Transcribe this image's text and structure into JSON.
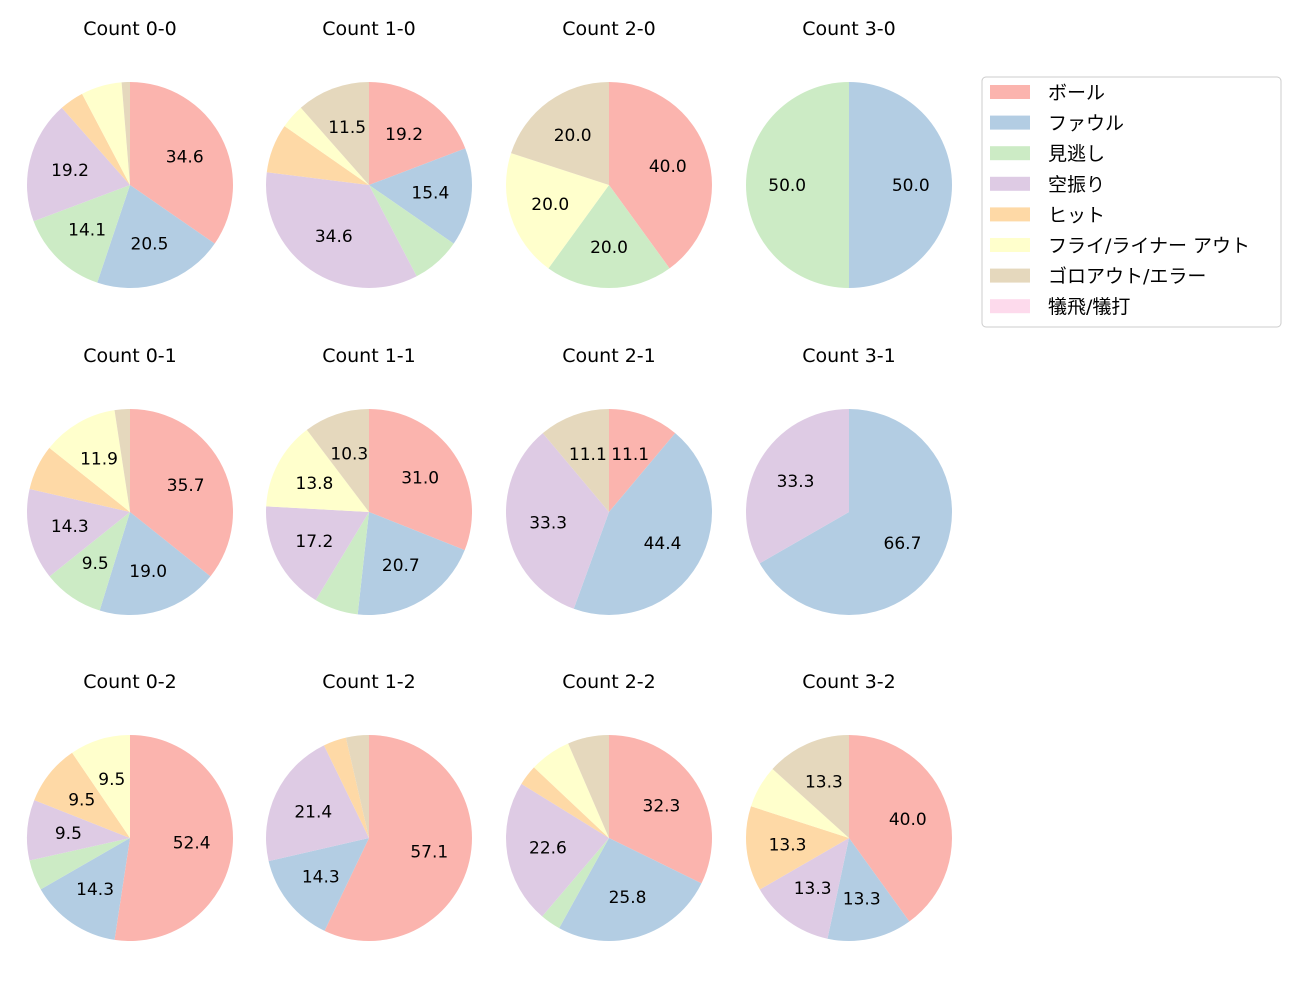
{
  "chart_data": {
    "type": "pie",
    "start": "top",
    "direction": "clockwise",
    "legend": {
      "placement": "top-right",
      "entries": [
        "ボール",
        "ファウル",
        "見逃し",
        "空振り",
        "ヒット",
        "フライ/ライナー アウト",
        "ゴロアウト/エラー",
        "犠飛/犠打"
      ]
    },
    "colors": [
      "#fbb4ae",
      "#b3cde3",
      "#ccebc5",
      "#decbe4",
      "#fed9a6",
      "#ffffcc",
      "#e5d8bd",
      "#fddaec"
    ],
    "charts": [
      {
        "title": "Count 0-0",
        "values": [
          34.6,
          20.5,
          14.1,
          19.2,
          3.8,
          6.4,
          1.3,
          0
        ]
      },
      {
        "title": "Count 1-0",
        "values": [
          19.2,
          15.4,
          7.7,
          34.6,
          7.7,
          3.8,
          11.5,
          0
        ]
      },
      {
        "title": "Count 2-0",
        "values": [
          40.0,
          0,
          20.0,
          0,
          0,
          20.0,
          20.0,
          0
        ]
      },
      {
        "title": "Count 3-0",
        "values": [
          0,
          50.0,
          50.0,
          0,
          0,
          0,
          0,
          0
        ]
      },
      {
        "title": "Count 0-1",
        "values": [
          35.7,
          19.0,
          9.5,
          14.3,
          7.1,
          11.9,
          2.4,
          0
        ]
      },
      {
        "title": "Count 1-1",
        "values": [
          31.0,
          20.7,
          6.9,
          17.2,
          0,
          13.8,
          10.3,
          0
        ]
      },
      {
        "title": "Count 2-1",
        "values": [
          11.1,
          44.4,
          0,
          33.3,
          0,
          0,
          11.1,
          0
        ]
      },
      {
        "title": "Count 3-1",
        "values": [
          0,
          66.7,
          0,
          33.3,
          0,
          0,
          0,
          0
        ]
      },
      {
        "title": "Count 0-2",
        "values": [
          52.4,
          14.3,
          4.8,
          9.5,
          9.5,
          9.5,
          0,
          0
        ]
      },
      {
        "title": "Count 1-2",
        "values": [
          57.1,
          14.3,
          0,
          21.4,
          3.6,
          0,
          3.6,
          0
        ]
      },
      {
        "title": "Count 2-2",
        "values": [
          32.3,
          25.8,
          3.2,
          22.6,
          3.2,
          6.5,
          6.5,
          0
        ]
      },
      {
        "title": "Count 3-2",
        "values": [
          40.0,
          13.3,
          0,
          13.3,
          13.3,
          6.7,
          13.3,
          0
        ]
      }
    ]
  }
}
